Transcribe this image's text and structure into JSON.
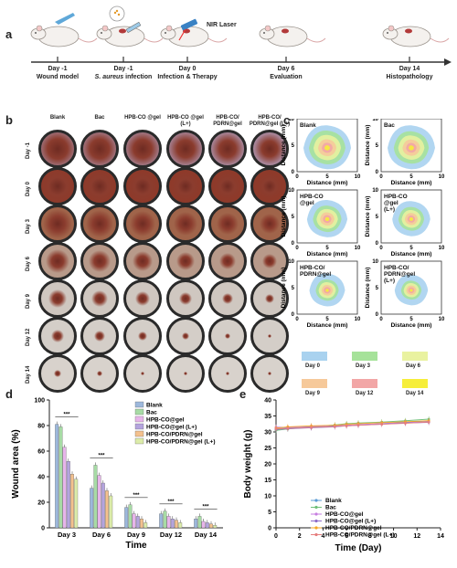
{
  "panels": {
    "a": "a",
    "b": "b",
    "c": "c",
    "d": "d",
    "e": "e"
  },
  "timeline": {
    "laser_label": "NIR Laser",
    "steps": [
      {
        "day": "Day -1",
        "desc": "Wound model",
        "italic_prefix": ""
      },
      {
        "day": "Day -1",
        "desc": " infection",
        "italic_prefix": "S. aureus"
      },
      {
        "day": "Day 0",
        "desc": "Infection & Therapy",
        "italic_prefix": ""
      },
      {
        "day": "Day 6",
        "desc": "Evaluation",
        "italic_prefix": ""
      },
      {
        "day": "Day 14",
        "desc": "Histopathology",
        "italic_prefix": ""
      }
    ]
  },
  "photos": {
    "columns": [
      "Blank",
      "Bac",
      "HPB-CO @gel",
      "HPB-CO @gel (L+)",
      "HPB-CO/ PDRN@gel",
      "HPB-CO/ PDRN@gel (L+)"
    ],
    "rows": [
      "Day -1",
      "Day 0",
      "Day 3",
      "Day 6",
      "Day 9",
      "Day 12",
      "Day 14"
    ],
    "colors": {
      "day_-1": "#a8869a",
      "day_0": "#8e3a2a",
      "day_3": "#a0644a",
      "day_6": "#b89a8a",
      "day_9": "#cfc7c0",
      "day_12": "#d4cec8",
      "day_14": "#d8d2cc"
    }
  },
  "traces": {
    "titles": [
      "Blank",
      "Bac",
      "HPB-CO @gel",
      "HPB-CO @gel (L+)",
      "HPB-CO/ PDRN@gel",
      "HPB-CO/ PDRN@gel (L+)"
    ],
    "xlabel": "Distance (mm)",
    "ylabel": "Distance (mm)",
    "ticks": [
      "0",
      "5",
      "10"
    ],
    "legend": [
      {
        "label": "Day 0",
        "color": "#a9d2ef"
      },
      {
        "label": "Day 3",
        "color": "#a6e29a"
      },
      {
        "label": "Day 6",
        "color": "#e9f2a0"
      },
      {
        "label": "Day 9",
        "color": "#f6c99a"
      },
      {
        "label": "Day 12",
        "color": "#f2a6a6"
      },
      {
        "label": "Day 14",
        "color": "#f6ee3a"
      }
    ]
  },
  "chart_data": [
    {
      "type": "bar",
      "xlabel": "Time",
      "ylabel": "Wound area (%)",
      "ylim": [
        0,
        100
      ],
      "categories": [
        "Day 3",
        "Day 6",
        "Day 9",
        "Day 12",
        "Day 14"
      ],
      "series": [
        {
          "name": "Blank",
          "color": "#9db8dc",
          "values": [
            81,
            31,
            16,
            11,
            7
          ]
        },
        {
          "name": "Bac",
          "color": "#a7dba5",
          "values": [
            79,
            49,
            18,
            13,
            9
          ]
        },
        {
          "name": "HPB-CO@gel",
          "color": "#e7b4ea",
          "values": [
            63,
            41,
            11,
            9,
            5
          ]
        },
        {
          "name": "HPB-CO@gel (L+)",
          "color": "#b4a4de",
          "values": [
            52,
            35,
            9,
            7,
            4
          ]
        },
        {
          "name": "HPB-CO/PDRN@gel",
          "color": "#f4c18e",
          "values": [
            42,
            29,
            7,
            6,
            3
          ]
        },
        {
          "name": "HPB-CO/PDRN@gel (L+)",
          "color": "#dcecaa",
          "values": [
            38,
            25,
            4,
            4,
            2
          ]
        }
      ],
      "annotation": "***"
    },
    {
      "type": "line",
      "xlabel": "Time (Day)",
      "ylabel": "Body weight (g)",
      "xlim": [
        0,
        14
      ],
      "ylim": [
        0,
        40
      ],
      "x": [
        0,
        1,
        3,
        5,
        6,
        7,
        9,
        11,
        13
      ],
      "series": [
        {
          "name": "Blank",
          "color": "#5b9bd5",
          "values": [
            31,
            31.2,
            31.5,
            31.8,
            32,
            32.2,
            32.6,
            33,
            33.4
          ]
        },
        {
          "name": "Bac",
          "color": "#70c07a",
          "values": [
            30.5,
            30.9,
            31.6,
            32.2,
            32.6,
            32.8,
            33.1,
            33.5,
            34
          ]
        },
        {
          "name": "HPB-CO@gel",
          "color": "#c77ee0",
          "values": [
            31.5,
            31.4,
            31.7,
            32,
            32.1,
            32.3,
            32.6,
            32.9,
            33.2
          ]
        },
        {
          "name": "HPB-CO@gel (L+)",
          "color": "#8e6cc9",
          "values": [
            30.8,
            31,
            31.3,
            31.6,
            31.9,
            32.1,
            32.4,
            32.8,
            33
          ]
        },
        {
          "name": "HPB-CO/PDRN@gel",
          "color": "#f5a623",
          "values": [
            31.2,
            31.6,
            31.9,
            32.1,
            32.4,
            32.6,
            32.9,
            33.2,
            33.5
          ]
        },
        {
          "name": "HPB-CO/PDRN@gel (L+)",
          "color": "#e67e7e",
          "values": [
            31,
            31.1,
            31.4,
            31.7,
            31.9,
            32.1,
            32.4,
            32.7,
            33.1
          ]
        }
      ],
      "xticks": [
        0,
        2,
        4,
        6,
        8,
        10,
        12,
        14
      ],
      "yticks": [
        0,
        5,
        10,
        15,
        20,
        25,
        30,
        35,
        40
      ]
    }
  ]
}
